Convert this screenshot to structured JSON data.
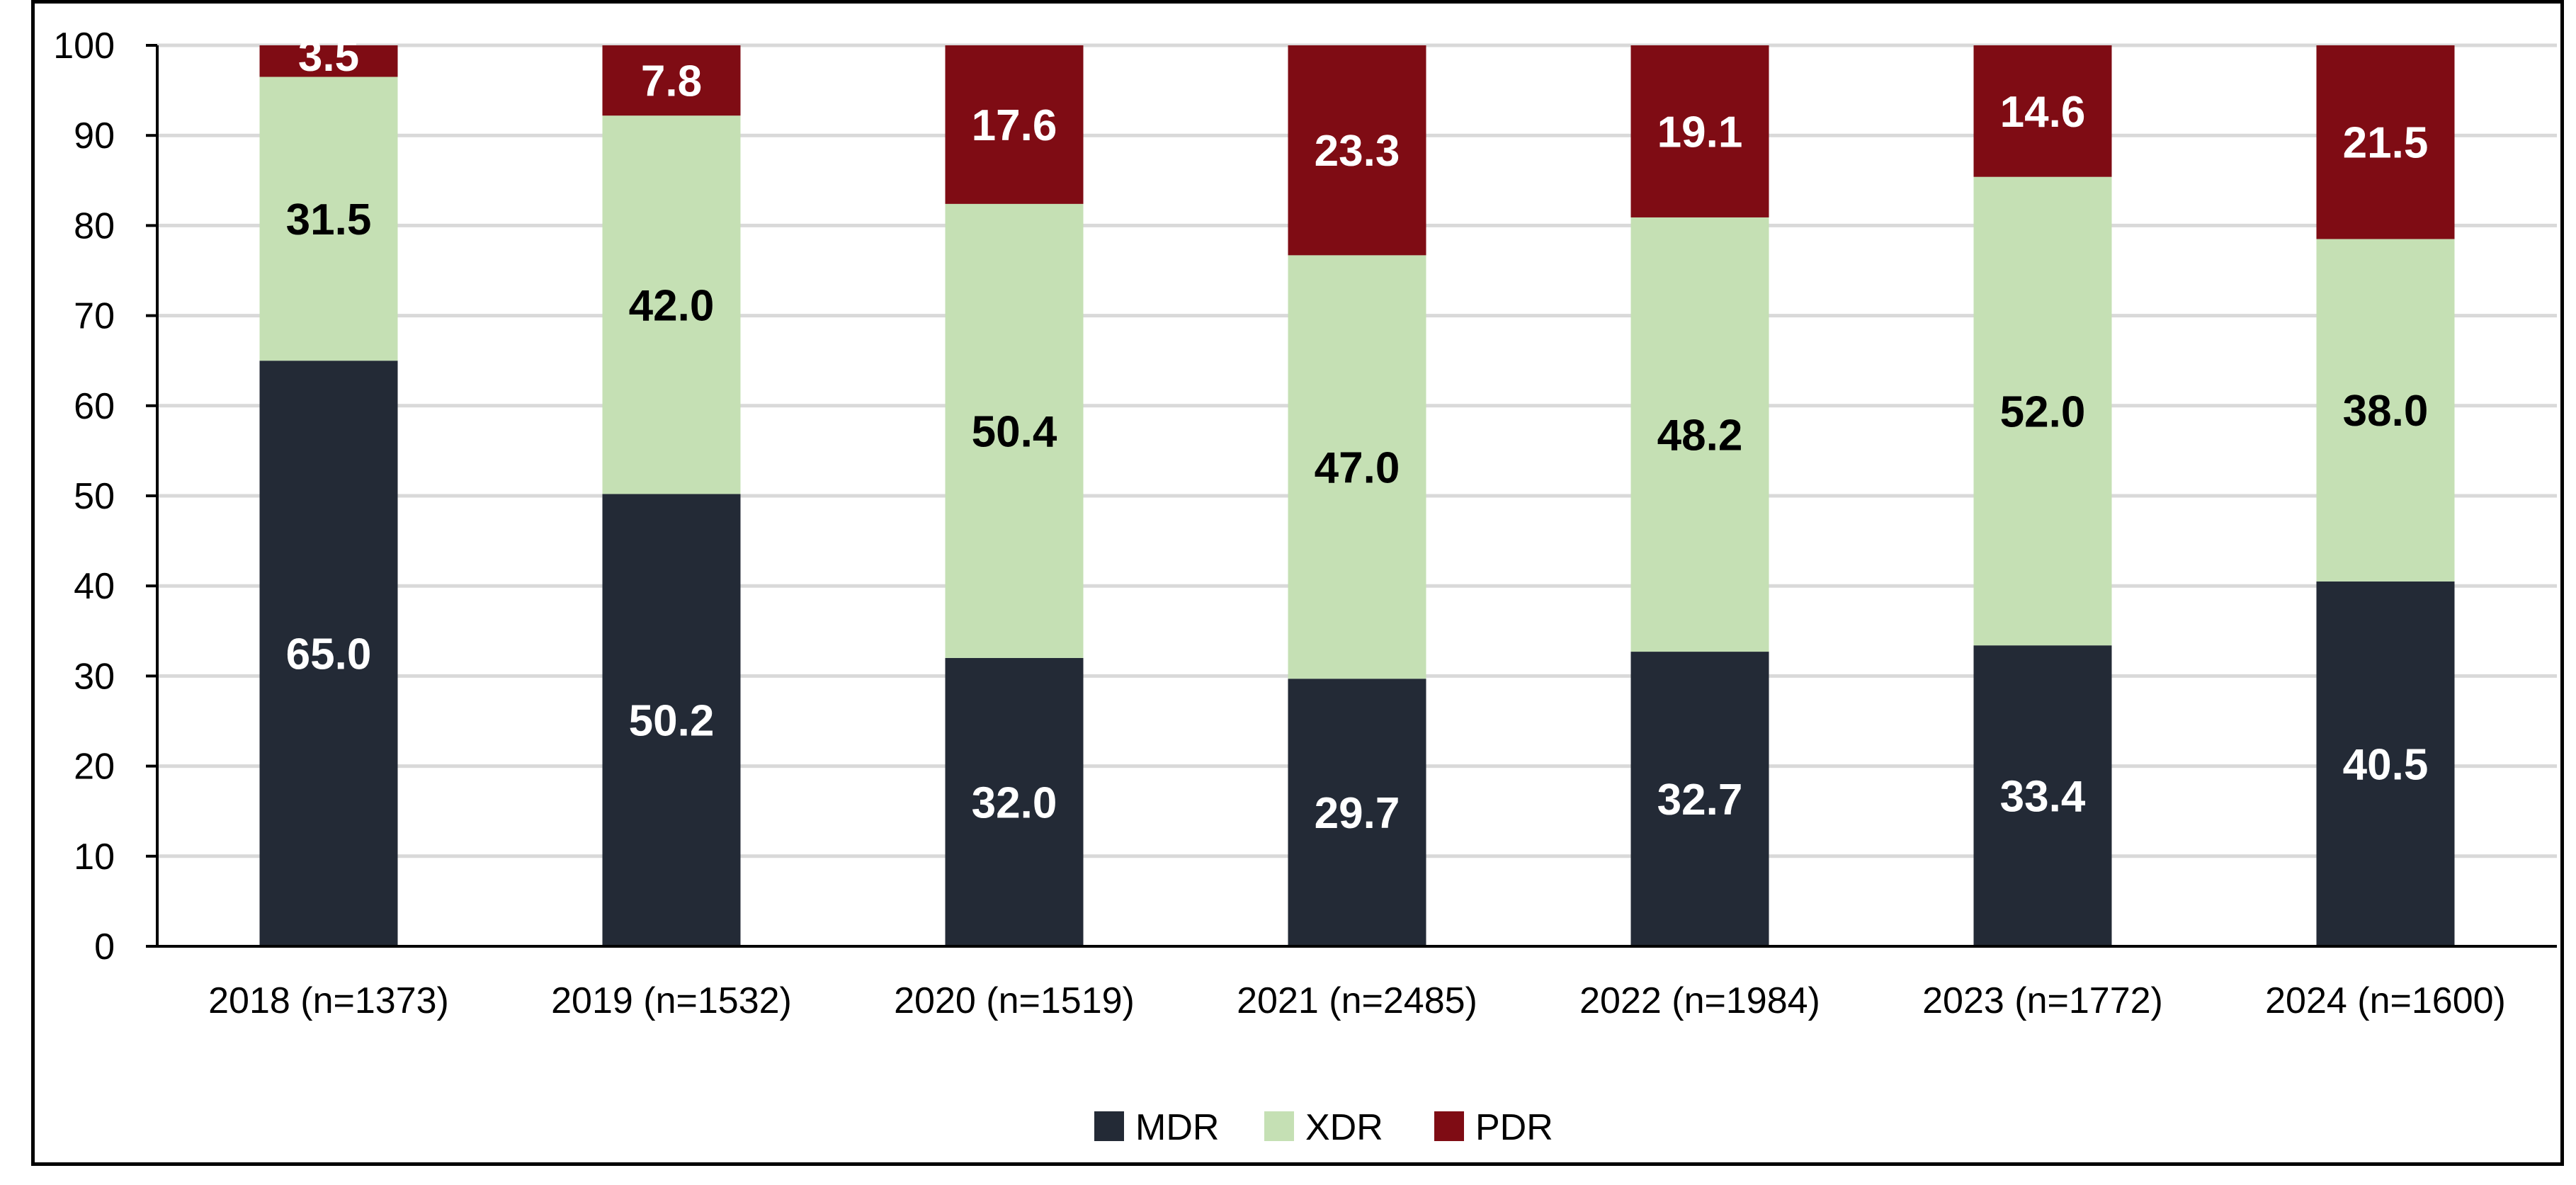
{
  "chart_data": {
    "type": "bar",
    "stacked": true,
    "categories": [
      "2018 (n=1373)",
      "2019 (n=1532)",
      "2020 (n=1519)",
      "2021 (n=2485)",
      "2022 (n=1984)",
      "2023 (n=1772)",
      "2024 (n=1600)"
    ],
    "series": [
      {
        "name": "MDR",
        "color": "#232a36",
        "label_color": "#ffffff",
        "values": [
          65.0,
          50.2,
          32.0,
          29.7,
          32.7,
          33.4,
          40.5
        ]
      },
      {
        "name": "XDR",
        "color": "#c5e0b4",
        "label_color": "#000000",
        "values": [
          31.5,
          42.0,
          50.4,
          47.0,
          48.2,
          52.0,
          38.0
        ]
      },
      {
        "name": "PDR",
        "color": "#7f0c14",
        "label_color": "#ffffff",
        "values": [
          3.5,
          7.8,
          17.6,
          23.3,
          19.1,
          14.6,
          21.5
        ]
      }
    ],
    "data_labels": [
      [
        "65.0",
        "50.2",
        "32.0",
        "29.7",
        "32.7",
        "33.4",
        "40.5"
      ],
      [
        "31.5",
        "42.0",
        "50.4",
        "47.0",
        "48.2",
        "52.0",
        "38.0"
      ],
      [
        "3.5",
        "7.8",
        "17.6",
        "23.3",
        "19.1",
        "14.6",
        "21.5"
      ]
    ],
    "ylim": [
      0,
      100
    ],
    "yticks": [
      0,
      10,
      20,
      30,
      40,
      50,
      60,
      70,
      80,
      90,
      100
    ],
    "ytick_labels": [
      "0",
      "10",
      "20",
      "30",
      "40",
      "50",
      "60",
      "70",
      "80",
      "90",
      "100"
    ],
    "grid": true,
    "legend": "bottom-center",
    "title": "",
    "xlabel": "",
    "ylabel": ""
  }
}
